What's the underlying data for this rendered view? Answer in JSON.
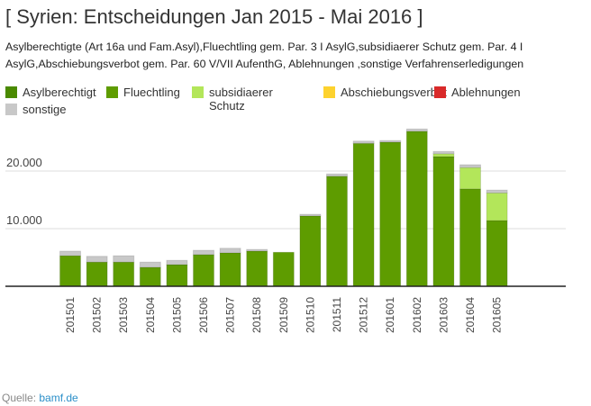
{
  "chart_data": {
    "type": "bar",
    "stacked": true,
    "title": "[ Syrien: Entscheidungen Jan 2015 - Mai 2016 ]",
    "subtitle": "Asylberechtigte (Art 16a und Fam.Asyl),Fluechtling gem. Par. 3 I AsylG,subsidiaerer Schutz gem. Par. 4 I AsylG,Abschiebungsverbot gem. Par. 60 V/VII AufenthG, Ablehnungen ,sonstige Verfahrenserledigungen",
    "categories": [
      "201501",
      "201502",
      "201503",
      "201504",
      "201505",
      "201506",
      "201507",
      "201508",
      "201509",
      "201510",
      "201511",
      "201512",
      "201601",
      "201602",
      "201603",
      "201604",
      "201605"
    ],
    "ylim": [
      0,
      28000
    ],
    "yticks": [
      {
        "value": 10000,
        "label": "10.000"
      },
      {
        "value": 20000,
        "label": "20.000"
      }
    ],
    "grid": true,
    "legend_placement": "top",
    "series": [
      {
        "name": "Asylberechtigt",
        "color": "#4a8a00",
        "values": [
          0,
          0,
          0,
          0,
          0,
          0,
          0,
          0,
          0,
          0,
          0,
          0,
          0,
          0,
          0,
          0,
          0
        ]
      },
      {
        "name": "Fluechtling",
        "color": "#5e9c00",
        "values": [
          5300,
          4200,
          4200,
          3300,
          3750,
          5500,
          5800,
          6100,
          5900,
          12200,
          19100,
          24800,
          25000,
          26900,
          22500,
          16900,
          11400
        ]
      },
      {
        "name": "subsidiaerer Schutz",
        "color": "#b3e65a",
        "values": [
          0,
          0,
          0,
          0,
          0,
          0,
          0,
          0,
          0,
          0,
          0,
          0,
          0,
          0,
          500,
          3700,
          4800
        ]
      },
      {
        "name": "Abschiebungsverbot",
        "color": "#fdd22e",
        "values": [
          0,
          0,
          0,
          0,
          0,
          0,
          0,
          0,
          0,
          0,
          0,
          0,
          0,
          0,
          0,
          0,
          0
        ]
      },
      {
        "name": "Ablehnungen",
        "color": "#d92a2a",
        "values": [
          0,
          0,
          0,
          0,
          0,
          0,
          0,
          0,
          0,
          0,
          0,
          0,
          0,
          0,
          0,
          0,
          0
        ]
      },
      {
        "name": "sonstige",
        "color": "#c8c8c8",
        "values": [
          800,
          1000,
          1100,
          900,
          750,
          750,
          800,
          300,
          0,
          300,
          400,
          400,
          300,
          400,
          400,
          500,
          500
        ]
      }
    ]
  },
  "source": {
    "label": "Quelle:",
    "link": "bamf.de"
  }
}
